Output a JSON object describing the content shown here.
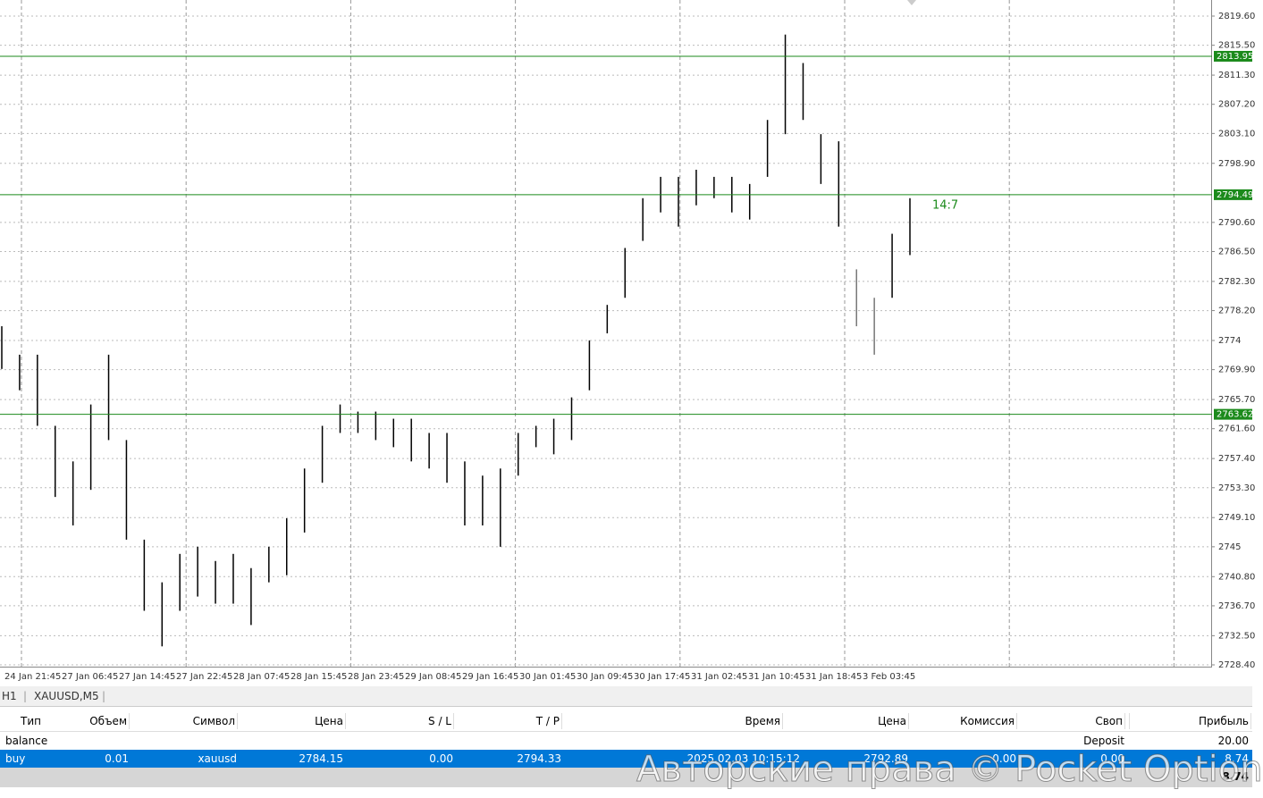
{
  "chart_data": {
    "type": "bar",
    "color": "#000000",
    "highs": [
      2776,
      2772,
      2772,
      2762,
      2757,
      2765,
      2772,
      2760,
      2746,
      2740,
      2744,
      2745,
      2743,
      2744,
      2742,
      2745,
      2749,
      2756,
      2762,
      2765,
      2764,
      2764,
      2763,
      2763,
      2761,
      2761,
      2757,
      2755,
      2756,
      2761,
      2762,
      2763,
      2766,
      2774,
      2779,
      2787,
      2794,
      2797,
      2797,
      2798,
      2797,
      2797,
      2796,
      2805,
      2817,
      2813,
      2803,
      2802,
      2784,
      2780,
      2789,
      2794
    ],
    "lows": [
      2770,
      2767,
      2762,
      2752,
      2748,
      2753,
      2760,
      2746,
      2736,
      2731,
      2736,
      2738,
      2737,
      2737,
      2734,
      2740,
      2741,
      2747,
      2754,
      2761,
      2761,
      2760,
      2759,
      2757,
      2756,
      2754,
      2748,
      2748,
      2745,
      2755,
      2759,
      2758,
      2760,
      2767,
      2775,
      2780,
      2788,
      2792,
      2790,
      2793,
      2794,
      2792,
      2791,
      2797,
      2803,
      2805,
      2796,
      2790,
      2776,
      2772,
      2780,
      2786
    ],
    "categories": [
      "24 Jan 21:45",
      "27 Jan 06:45",
      "27 Jan 14:45",
      "27 Jan 22:45",
      "28 Jan 07:45",
      "28 Jan 15:45",
      "28 Jan 23:45",
      "29 Jan 08:45",
      "29 Jan 16:45",
      "30 Jan 01:45",
      "30 Jan 09:45",
      "30 Jan 17:45",
      "31 Jan 02:45",
      "31 Jan 10:45",
      "31 Jan 18:45",
      "3 Feb 03:45"
    ],
    "ylim": [
      2728.4,
      2819.6
    ],
    "yticks": [
      {
        "value": 2819.6,
        "label": "2819.60"
      },
      {
        "value": 2815.5,
        "label": "2815.50"
      },
      {
        "value": 2811.3,
        "label": "2811.30"
      },
      {
        "value": 2807.2,
        "label": "2807.20"
      },
      {
        "value": 2803.1,
        "label": "2803.10"
      },
      {
        "value": 2798.9,
        "label": "2798.90"
      },
      {
        "value": 2790.6,
        "label": "2790.60"
      },
      {
        "value": 2786.5,
        "label": "2786.50"
      },
      {
        "value": 2782.3,
        "label": "2782.30"
      },
      {
        "value": 2778.2,
        "label": "2778.20"
      },
      2774,
      {
        "value": 2769.9,
        "label": "2769.90"
      },
      {
        "value": 2765.7,
        "label": "2765.70"
      },
      {
        "value": 2761.6,
        "label": "2761.60"
      },
      {
        "value": 2757.4,
        "label": "2757.40"
      },
      {
        "value": 2753.3,
        "label": "2753.30"
      },
      {
        "value": 2749.1,
        "label": "2749.10"
      },
      2745,
      {
        "value": 2740.8,
        "label": "2740.80"
      },
      {
        "value": 2736.7,
        "label": "2736.70"
      },
      {
        "value": 2732.5,
        "label": "2732.50"
      },
      {
        "value": 2728.4,
        "label": "2728.40"
      }
    ],
    "levels": [
      2813.95,
      2794.49,
      2763.62
    ],
    "level_color": "#1b8a1b",
    "timer": "14:7",
    "grid": true
  },
  "panel": {
    "tabs": [
      "H1",
      "XAUUSD,M5"
    ],
    "table": {
      "header": [
        "Тип",
        "Объем",
        "Символ",
        "Цена",
        "S / L",
        "T / P",
        "Время",
        "Цена",
        "Комиссия",
        "Своп",
        "Прибыль"
      ],
      "rows": [
        [
          "balance",
          "",
          "",
          "",
          "",
          "",
          "",
          "",
          "",
          "Deposit",
          "20.00"
        ],
        [
          "buy",
          "0.01",
          "xauusd",
          "2784.15",
          "0.00",
          "2794.33",
          "2025.02.03 10:15:12",
          "2792.89",
          "0.00",
          "0.00",
          "8.74"
        ]
      ],
      "total": "8.74"
    },
    "watermark": "Авторские права © Pocket Option"
  }
}
